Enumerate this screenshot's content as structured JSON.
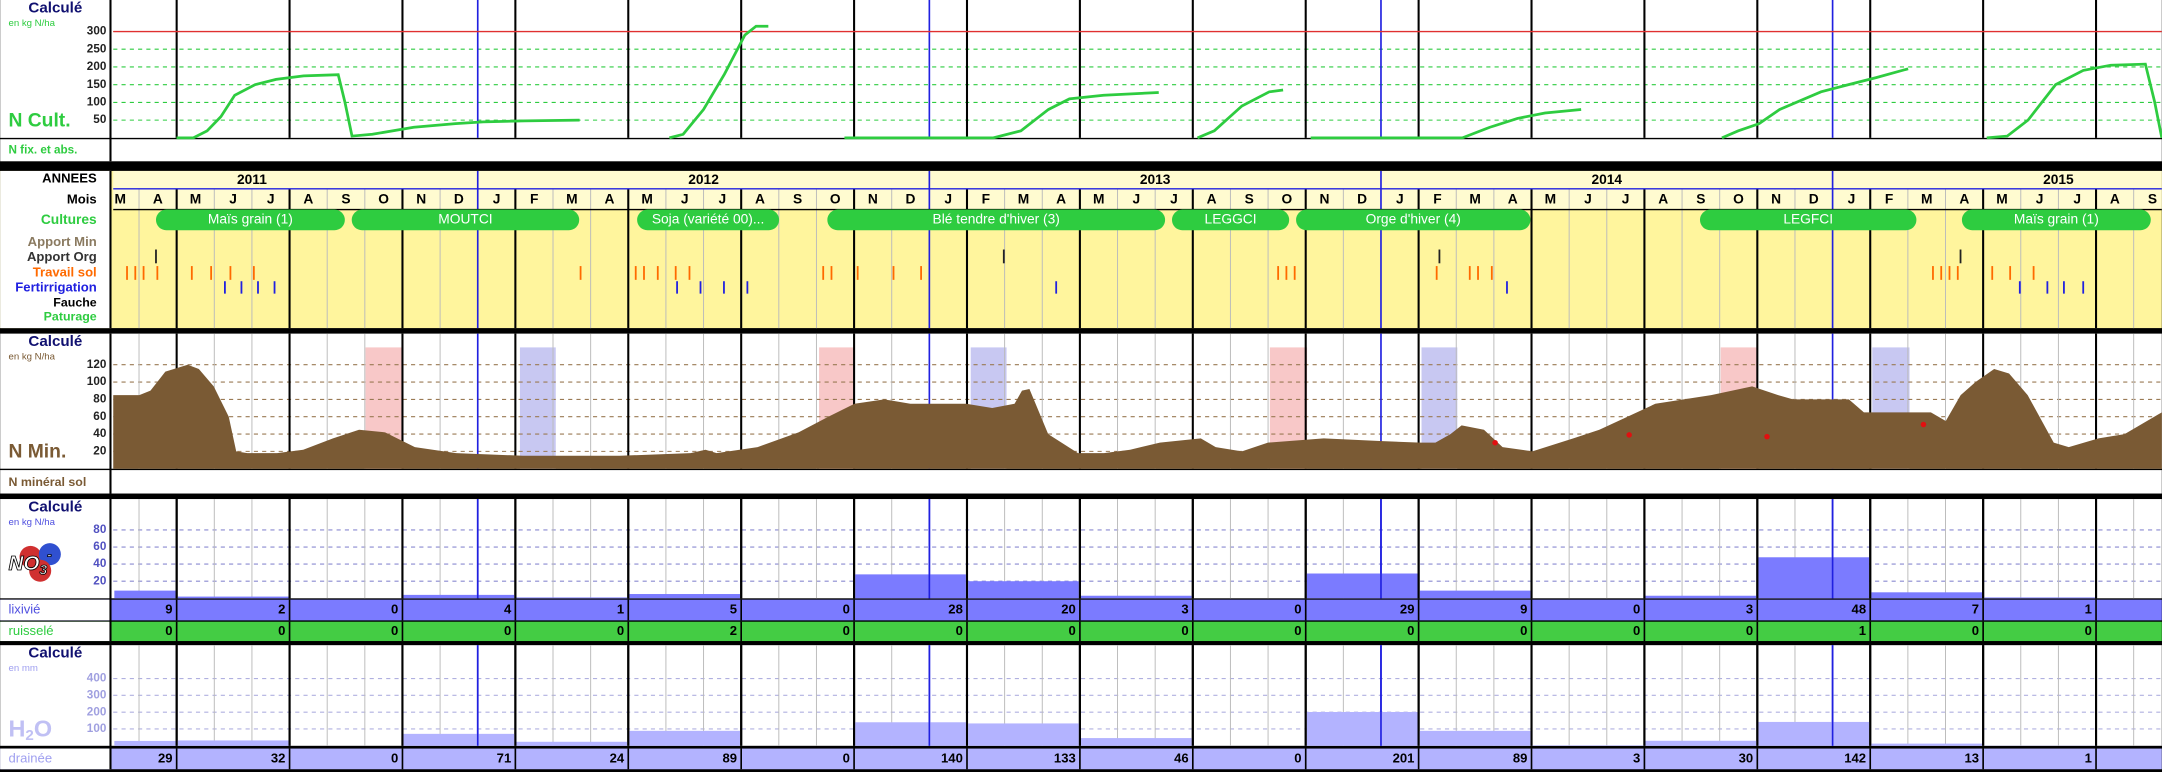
{
  "chart_data": [
    {
      "type": "line",
      "title": "Calculé",
      "subtitle": "en kg N/ha",
      "row_label": "N fix. et abs.",
      "xlim": [
        0,
        55
      ],
      "ylim": [
        0,
        350
      ],
      "yticks": [
        50,
        100,
        150,
        200,
        250,
        300
      ],
      "grid": true,
      "limit_line": 300,
      "limit_color": "#e03030",
      "series": [
        {
          "name": "N Cult.",
          "color": "#2ecc40",
          "x": [
            1.7,
            2.15,
            2.52,
            2.89,
            3.26,
            3.81,
            4.37,
            5.11,
            6.04,
            6.22,
            6.41,
            6.96,
            8.07,
            9.19,
            9.93,
            11.04,
            12.52,
            null,
            14.93,
            15.3,
            15.85,
            16.41,
            16.96,
            17.26,
            17.59,
            null,
            19.63,
            23.63,
            24.37,
            25.11,
            25.67,
            26.59,
            28.07,
            null,
            29.11,
            29.56,
            30.3,
            31.04,
            31.41,
            null,
            32.15,
            36.22,
            36.96,
            37.7,
            38.44,
            39.41,
            null,
            43.19,
            43.63,
            44.19,
            44.74,
            45.85,
            46.59,
            47.33,
            48.19,
            null,
            50.3,
            50.85,
            51.41,
            52.15,
            52.89,
            53.63,
            54.56,
            54.81,
            55
          ],
          "values": [
            0,
            0,
            20,
            60,
            120,
            150,
            165,
            175,
            178,
            100,
            5,
            10,
            30,
            40,
            45,
            48,
            50,
            null,
            0,
            10,
            80,
            180,
            290,
            315,
            315,
            null,
            0,
            0,
            20,
            80,
            110,
            120,
            128,
            null,
            0,
            20,
            90,
            130,
            135,
            null,
            0,
            0,
            30,
            55,
            70,
            80,
            null,
            0,
            20,
            40,
            80,
            130,
            150,
            170,
            195,
            null,
            0,
            5,
            50,
            150,
            190,
            205,
            208,
            100,
            0
          ]
        }
      ]
    },
    {
      "type": "calendar",
      "row_labels": [
        "ANNEES",
        "Mois",
        "Cultures",
        "Apport Min",
        "Apport Org",
        "Travail sol",
        "Fertirrigation",
        "Fauche",
        "Paturage"
      ],
      "years": [
        2011,
        2012,
        2013,
        2014,
        2015
      ],
      "months": [
        "M",
        "A",
        "M",
        "J",
        "J",
        "A",
        "S",
        "O",
        "N",
        "D",
        "J",
        "F",
        "M",
        "A",
        "M",
        "J",
        "J",
        "A",
        "S",
        "O",
        "N",
        "D",
        "J",
        "F",
        "M",
        "A",
        "M",
        "J",
        "J",
        "A",
        "S",
        "O",
        "N",
        "D",
        "J",
        "F",
        "M",
        "A",
        "M",
        "J",
        "J",
        "A",
        "S",
        "O",
        "N",
        "D",
        "J",
        "F",
        "M",
        "A",
        "M",
        "J",
        "J",
        "A",
        "S"
      ],
      "cultures": [
        "Maïs grain (1)",
        "MOUTCI",
        "Soja (variété 00)...",
        "Blé tendre d'hiver (3)",
        "LEGGCI",
        "Orge d'hiver (4)",
        "LEGFCI",
        "Maïs grain (1)"
      ],
      "culture_color": "#2ecc40"
    },
    {
      "type": "area",
      "title": "Calculé",
      "subtitle": "en kg N/ha",
      "xlim": [
        0,
        55
      ],
      "ylim": [
        0,
        140
      ],
      "yticks": [
        20,
        40,
        60,
        80,
        100,
        120
      ],
      "grid": true,
      "series": [
        {
          "name": "N Min.",
          "color": "#7a5a34",
          "x": [
            0.0,
            0.7,
            1.0,
            1.4,
            2.0,
            2.3,
            2.7,
            3.1,
            3.3,
            3.6,
            4.4,
            5.1,
            5.9,
            6.6,
            7.3,
            8.1,
            9.2,
            11.0,
            13.6,
            15.5,
            15.9,
            16.2,
            17.3,
            18.4,
            19.2,
            19.9,
            20.7,
            21.4,
            22.9,
            23.6,
            24.2,
            24.4,
            24.6,
            25.1,
            25.9,
            26.6,
            27.3,
            28.1,
            29.2,
            29.6,
            30.3,
            31.0,
            32.5,
            34.0,
            35.1,
            35.5,
            35.9,
            36.2,
            36.8,
            37.3,
            38.1,
            39.2,
            39.9,
            41.4,
            42.9,
            44.0,
            44.7,
            45.1,
            46.6,
            47.0,
            48.8,
            49.2,
            49.6,
            50.0,
            50.5,
            50.9,
            51.4,
            52.1,
            52.5,
            53.3,
            54.0,
            55.0
          ],
          "values": [
            85,
            85,
            90,
            112,
            120,
            115,
            95,
            60,
            20,
            18,
            18,
            22,
            35,
            45,
            42,
            25,
            18,
            15,
            15,
            18,
            22,
            18,
            25,
            42,
            60,
            75,
            80,
            75,
            75,
            70,
            75,
            90,
            92,
            40,
            18,
            18,
            22,
            30,
            35,
            25,
            20,
            30,
            35,
            32,
            30,
            30,
            40,
            50,
            45,
            25,
            20,
            35,
            45,
            75,
            85,
            95,
            85,
            80,
            80,
            65,
            65,
            55,
            85,
            100,
            115,
            110,
            85,
            30,
            25,
            35,
            40,
            65
          ]
        },
        {
          "name": "N minéral sol",
          "color": "#e01010",
          "x": [
            37.1,
            40.7,
            44.4,
            48.6
          ],
          "values": [
            30,
            39,
            37,
            51
          ]
        }
      ]
    },
    {
      "type": "bar",
      "title": "Calculé",
      "subtitle": "en kg N/ha",
      "icon": {
        "base": "NO",
        "sub": "3",
        "sup": "-"
      },
      "ylim": [
        0,
        100
      ],
      "yticks": [
        20,
        40,
        60,
        80
      ],
      "grid": true,
      "series": [
        {
          "name": "lixivié",
          "color": "#7b7bff",
          "values": [
            9,
            2,
            0,
            4,
            1,
            5,
            0,
            28,
            20,
            3,
            0,
            29,
            9,
            0,
            3,
            48,
            7,
            1
          ]
        },
        {
          "name": "ruisselé",
          "color": "#44cc44",
          "values": [
            0,
            0,
            0,
            0,
            0,
            2,
            0,
            0,
            0,
            0,
            0,
            0,
            0,
            0,
            0,
            1,
            0,
            0
          ]
        }
      ]
    },
    {
      "type": "bar",
      "title": "Calculé",
      "subtitle": "en mm",
      "icon": {
        "base": "H",
        "sub": "2",
        "sup": "O"
      },
      "ylim": [
        0,
        500
      ],
      "yticks": [
        100,
        200,
        300,
        400
      ],
      "grid": true,
      "series": [
        {
          "name": "drainée",
          "color": "#b3b3ff",
          "values": [
            29,
            32,
            0,
            71,
            24,
            89,
            0,
            140,
            133,
            46,
            0,
            201,
            89,
            3,
            30,
            142,
            13,
            1
          ]
        }
      ]
    }
  ]
}
